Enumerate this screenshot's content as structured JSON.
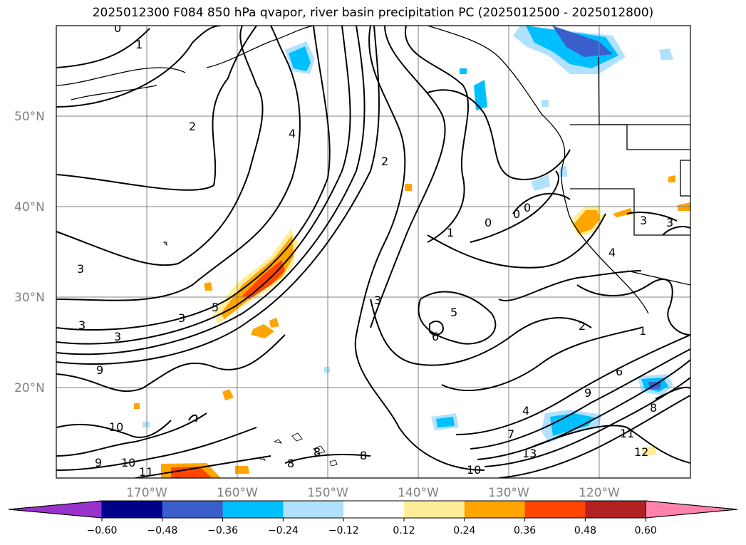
{
  "title": "2025012300 F084 850 hPa qvapor, river basin precipitation PC (2025012500 - 2025012800)",
  "map": {
    "lat_labels": [
      "50°N",
      "40°N",
      "30°N",
      "20°N"
    ],
    "lon_labels": [
      "170°W",
      "160°W",
      "150°W",
      "140°W",
      "130°W",
      "120°W"
    ],
    "contour_labels": [
      "0",
      "1",
      "2",
      "4",
      "3",
      "3",
      "3",
      "3",
      "2",
      "3",
      "5",
      "9",
      "10",
      "9",
      "10",
      "11",
      "8",
      "8",
      "8",
      "0",
      "0",
      "0",
      "1",
      "5",
      "6",
      "2",
      "1",
      "6",
      "9",
      "4",
      "7",
      "10",
      "13",
      "12",
      "11",
      "8",
      "3",
      "3",
      "4"
    ]
  },
  "colorbar": {
    "colors": [
      "#9932cc",
      "#00008b",
      "#3a5fcd",
      "#00bfff",
      "#b0e2ff",
      "#ffffff",
      "#ffee99",
      "#ffa500",
      "#ff4500",
      "#b22222",
      "#ff82ab"
    ],
    "tick_labels": [
      "−0.60",
      "−0.48",
      "−0.36",
      "−0.24",
      "−0.12",
      "0.12",
      "0.24",
      "0.36",
      "0.48",
      "0.60"
    ]
  },
  "colors": {
    "land_edge": "#000000",
    "grid": "#808080"
  }
}
